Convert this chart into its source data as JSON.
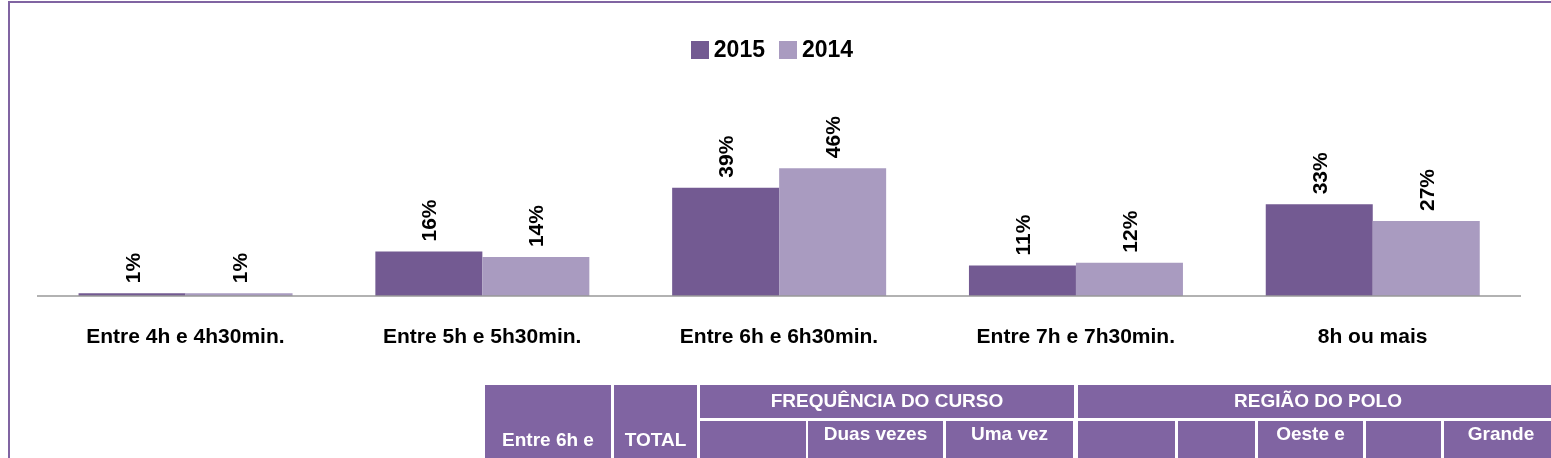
{
  "chart_data": [
    {
      "type": "bar",
      "categories": [
        "Entre 4h e 4h30min.",
        "Entre 5h e 5h30min.",
        "Entre 6h e 6h30min.",
        "Entre 7h e 7h30min.",
        "8h ou mais"
      ],
      "series": [
        {
          "name": "2015",
          "color": "#735a92",
          "values": [
            1,
            16,
            39,
            11,
            33
          ],
          "value_labels": [
            "1%",
            "16%",
            "39%",
            "11%",
            "33%"
          ]
        },
        {
          "name": "2014",
          "color": "#a99bc0",
          "values": [
            1,
            14,
            46,
            12,
            27
          ],
          "value_labels": [
            "1%",
            "14%",
            "46%",
            "12%",
            "27%"
          ]
        }
      ],
      "legend": "top",
      "grid": false
    },
    {
      "type": "other",
      "annotations": [
        "Entre 6h e",
        "TOTAL",
        "FREQUÊNCIA DO CURSO",
        "REGIÃO DO POLO",
        "Duas vezes",
        "Uma vez",
        "Oeste e",
        "Grande"
      ]
    }
  ]
}
